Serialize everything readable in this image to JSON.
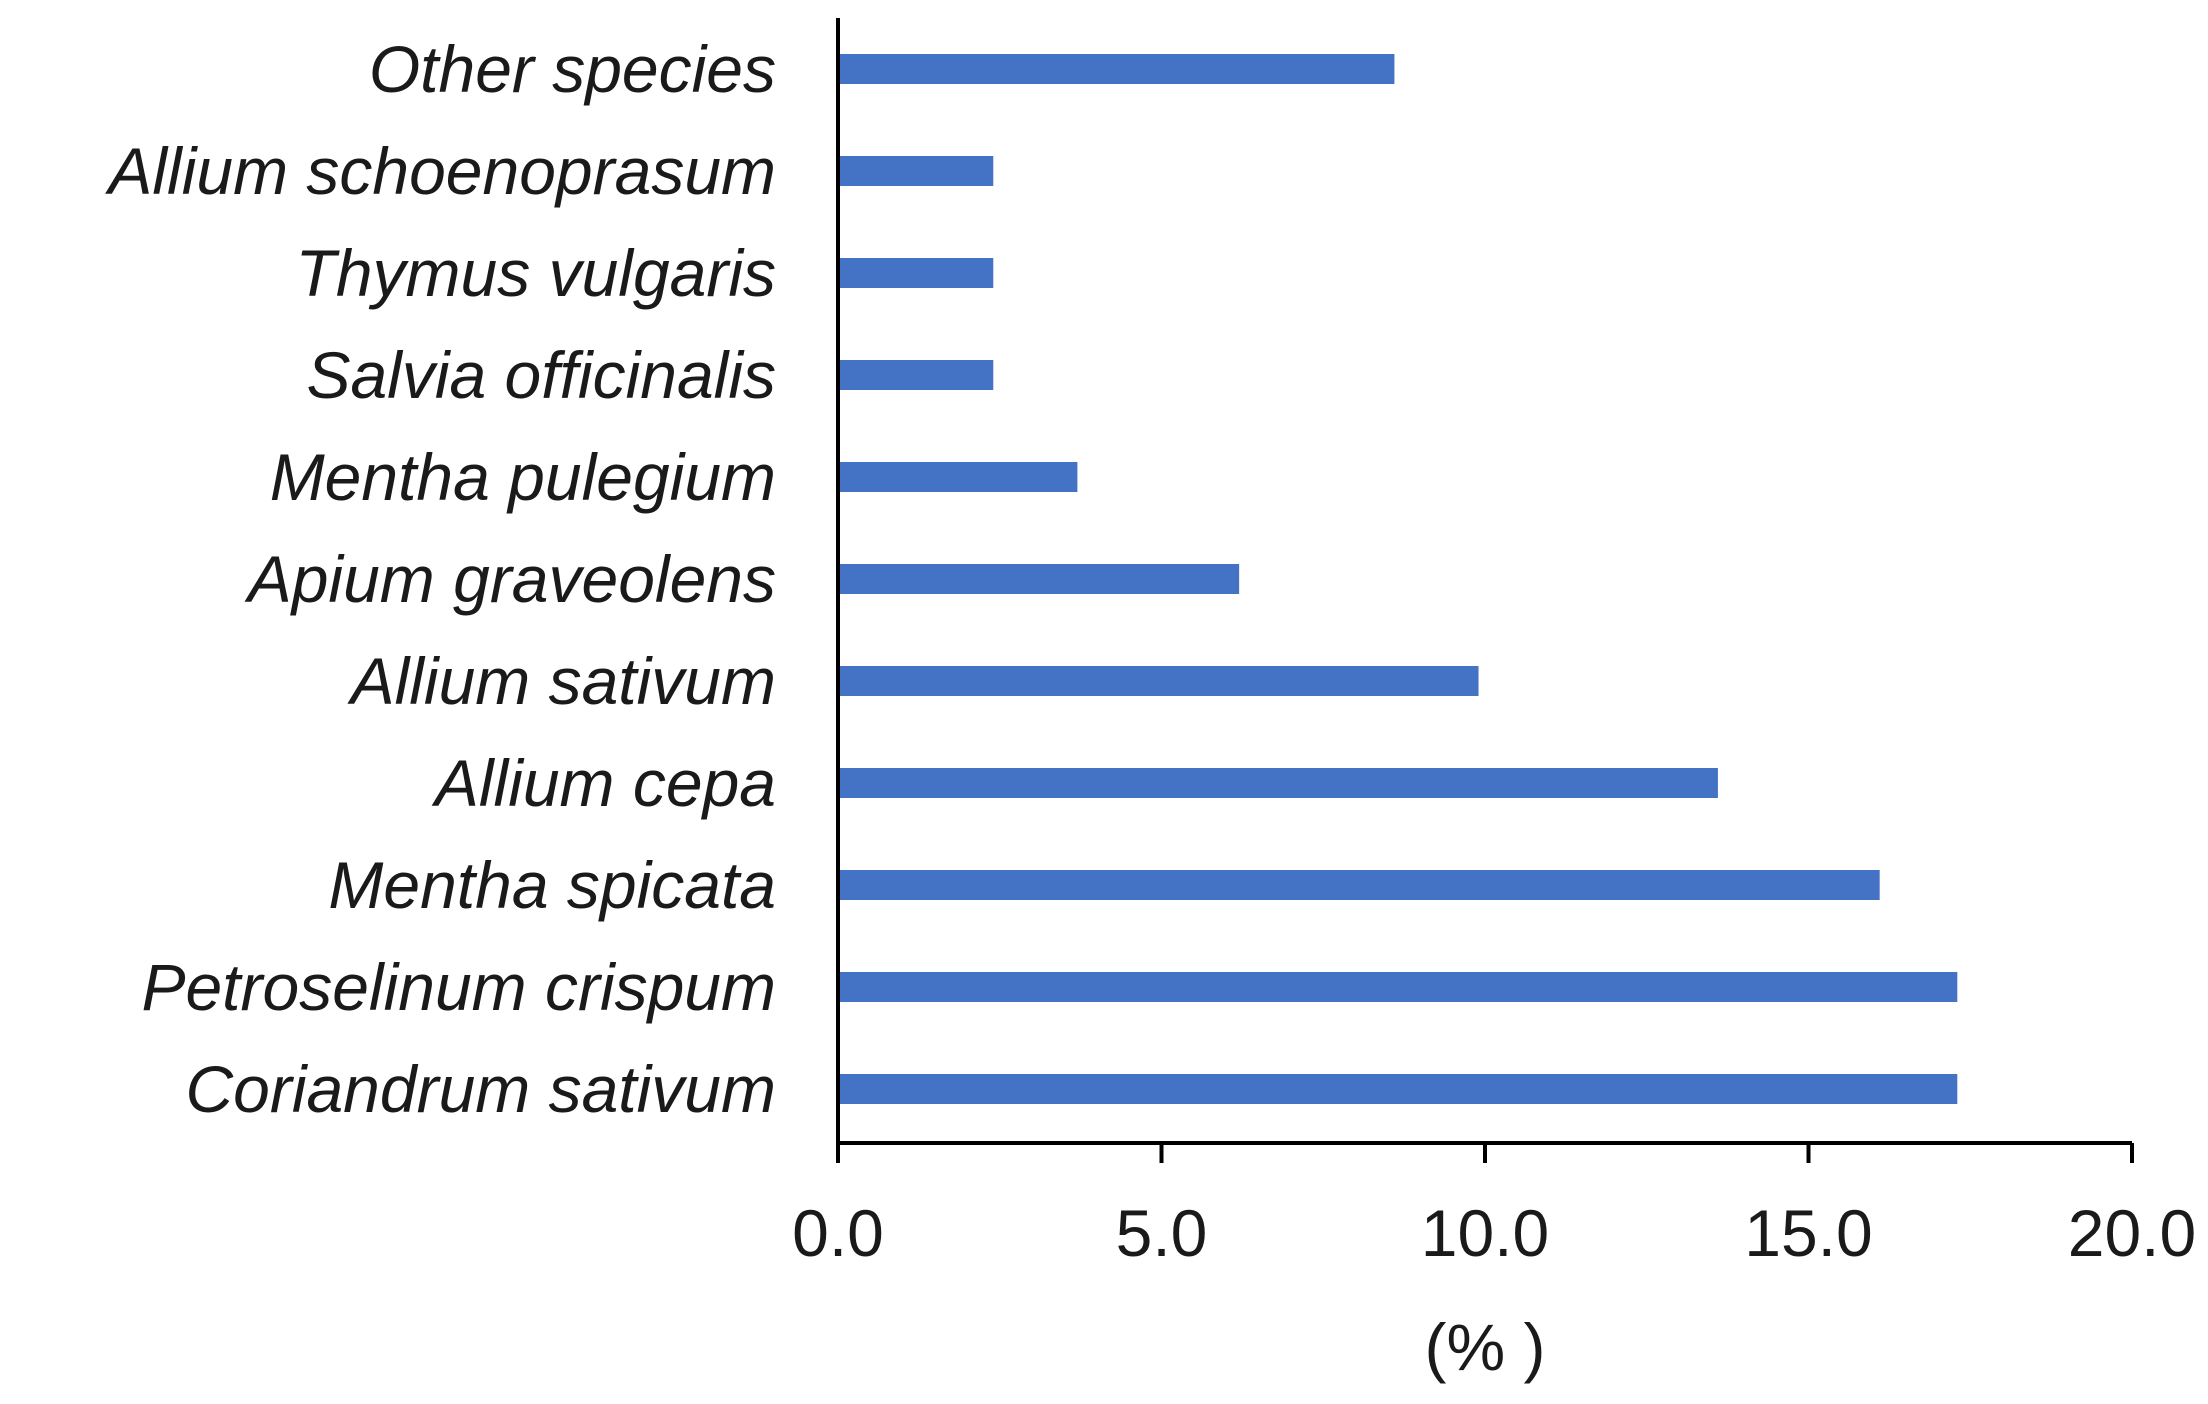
{
  "chart_data": {
    "type": "bar",
    "orientation": "horizontal",
    "categories": [
      "Other species",
      "Allium schoenoprasum",
      "Thymus vulgaris",
      "Salvia officinalis",
      "Mentha pulegium",
      "Apium graveolens",
      "Allium sativum",
      "Allium cepa",
      "Mentha spicata",
      "Petroselinum crispum",
      "Coriandrum sativum"
    ],
    "values": [
      8.6,
      2.4,
      2.4,
      2.4,
      3.7,
      6.2,
      9.9,
      13.6,
      16.1,
      17.3,
      17.3
    ],
    "xlim": [
      0,
      20
    ],
    "xticks": [
      "0.0",
      "5.0",
      "10.0",
      "15.0",
      "20.0"
    ],
    "xlabel": "(% )",
    "ylabel": "",
    "title": "",
    "grid": false,
    "legend": "none",
    "bar_color": "#4472C4"
  }
}
